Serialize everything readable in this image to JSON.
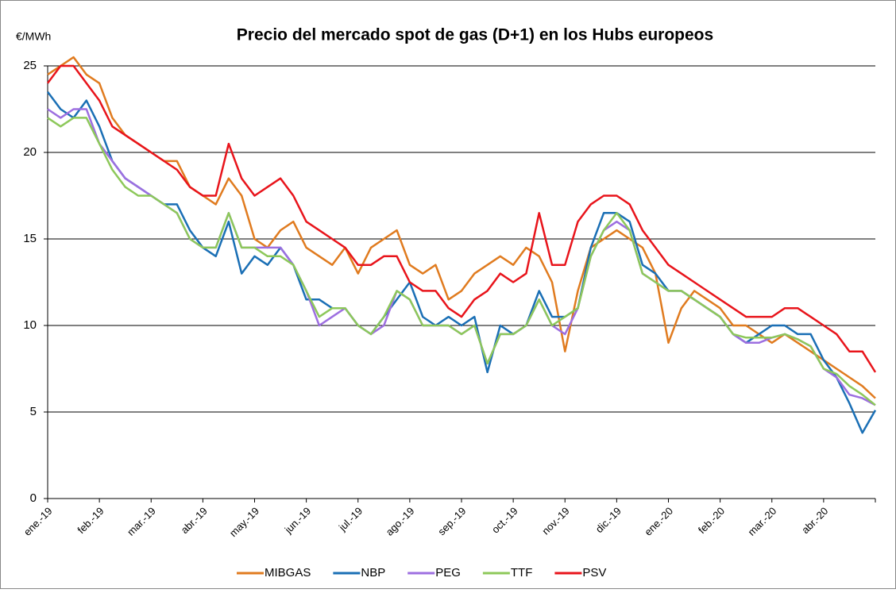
{
  "chart_data": {
    "type": "line",
    "title": "Precio del mercado spot de gas (D+1) en los Hubs europeos",
    "y_label": "€/MWh",
    "categories": [
      "ene.-19",
      null,
      null,
      null,
      "feb.-19",
      null,
      null,
      null,
      "mar.-19",
      null,
      null,
      null,
      "abr.-19",
      null,
      null,
      null,
      "may.-19",
      null,
      null,
      null,
      "jun.-19",
      null,
      null,
      null,
      "jul.-19",
      null,
      null,
      null,
      "ago.-19",
      null,
      null,
      null,
      "sep.-19",
      null,
      null,
      null,
      "oct.-19",
      null,
      null,
      null,
      "nov.-19",
      null,
      null,
      null,
      "dic.-19",
      null,
      null,
      null,
      "ene.-20",
      null,
      null,
      null,
      "feb.-20",
      null,
      null,
      null,
      "mar.-20",
      null,
      null,
      null,
      "abr.-20",
      null,
      null,
      null,
      null
    ],
    "series": [
      {
        "name": "MIBGAS",
        "color": "#e07b1f",
        "values": [
          24.5,
          25,
          25.5,
          24.5,
          24,
          22,
          21,
          20.5,
          20,
          19.5,
          19.5,
          18,
          17.5,
          17,
          18.5,
          17.5,
          15,
          14.5,
          15.5,
          16,
          14.5,
          14,
          13.5,
          14.5,
          13,
          14.5,
          15,
          15.5,
          13.5,
          13,
          13.5,
          11.5,
          12,
          13,
          13.5,
          14,
          13.5,
          14.5,
          14,
          12.5,
          8.5,
          12,
          14.5,
          15,
          15.5,
          15,
          14.5,
          13,
          9,
          11,
          12,
          11.5,
          11,
          10,
          10,
          9.5,
          9,
          9.5,
          9,
          8.5,
          8,
          7.5,
          7,
          6.5,
          5.8
        ]
      },
      {
        "name": "NBP",
        "color": "#1a6fb5",
        "values": [
          23.5,
          22.5,
          22,
          23,
          21.5,
          19.5,
          18.5,
          18,
          17.5,
          17,
          17,
          15.5,
          14.5,
          14,
          16,
          13,
          14,
          13.5,
          14.5,
          13.5,
          11.5,
          11.5,
          11,
          11,
          10,
          9.5,
          10.5,
          11.5,
          12.5,
          10.5,
          10,
          10.5,
          10,
          10.5,
          7.3,
          10,
          9.5,
          10,
          12,
          10.5,
          10.5,
          11,
          14.5,
          16.5,
          16.5,
          16,
          13.5,
          13,
          12,
          12,
          11.5,
          11,
          10.5,
          9.5,
          9,
          9.5,
          10,
          10,
          9.5,
          9.5,
          8,
          7,
          5.5,
          3.8,
          5.1
        ]
      },
      {
        "name": "PEG",
        "color": "#9d6fe0",
        "values": [
          22.5,
          22,
          22.5,
          22.5,
          20.5,
          19.5,
          18.5,
          18,
          17.5,
          17,
          16.5,
          15,
          14.5,
          14.5,
          16.5,
          14.5,
          14.5,
          14.5,
          14.5,
          13.5,
          12,
          10,
          10.5,
          11,
          10,
          9.5,
          10,
          12,
          11.5,
          10,
          10,
          10,
          9.5,
          10,
          7.8,
          9.5,
          9.5,
          10,
          11.5,
          10,
          9.5,
          11,
          14,
          15.5,
          16,
          15.5,
          13,
          12.5,
          12,
          12,
          11.5,
          11,
          10.5,
          9.5,
          9,
          9,
          9.3,
          9.5,
          9.2,
          8.8,
          7.5,
          7,
          6,
          5.8,
          5.4
        ]
      },
      {
        "name": "TTF",
        "color": "#8dc85a",
        "values": [
          22,
          21.5,
          22,
          22,
          20.5,
          19,
          18,
          17.5,
          17.5,
          17,
          16.5,
          15,
          14.5,
          14.5,
          16.5,
          14.5,
          14.5,
          14,
          14,
          13.5,
          12,
          10.5,
          11,
          11,
          10,
          9.5,
          10.5,
          12,
          11.5,
          10,
          10,
          10,
          9.5,
          10,
          7.8,
          9.5,
          9.5,
          10,
          11.5,
          10,
          10.5,
          11,
          14,
          15.5,
          16.5,
          15.5,
          13,
          12.5,
          12,
          12,
          11.5,
          11,
          10.5,
          9.5,
          9.3,
          9.3,
          9.3,
          9.5,
          9.2,
          8.8,
          7.5,
          7.2,
          6.5,
          6,
          5.4
        ]
      },
      {
        "name": "PSV",
        "color": "#e8141b",
        "values": [
          24,
          25,
          25,
          24,
          23,
          21.5,
          21,
          20.5,
          20,
          19.5,
          19,
          18,
          17.5,
          17.5,
          20.5,
          18.5,
          17.5,
          18,
          18.5,
          17.5,
          16,
          15.5,
          15,
          14.5,
          13.5,
          13.5,
          14,
          14,
          12.5,
          12,
          12,
          11,
          10.5,
          11.5,
          12,
          13,
          12.5,
          13,
          16.5,
          13.5,
          13.5,
          16,
          17,
          17.5,
          17.5,
          17,
          15.5,
          14.5,
          13.5,
          13,
          12.5,
          12,
          11.5,
          11,
          10.5,
          10.5,
          10.5,
          11,
          11,
          10.5,
          10,
          9.5,
          8.5,
          8.5,
          7.3
        ]
      }
    ],
    "ylim": [
      0,
      25
    ],
    "yticks": [
      0,
      5,
      10,
      15,
      20,
      25
    ],
    "grid": true,
    "legend": "bottom"
  }
}
